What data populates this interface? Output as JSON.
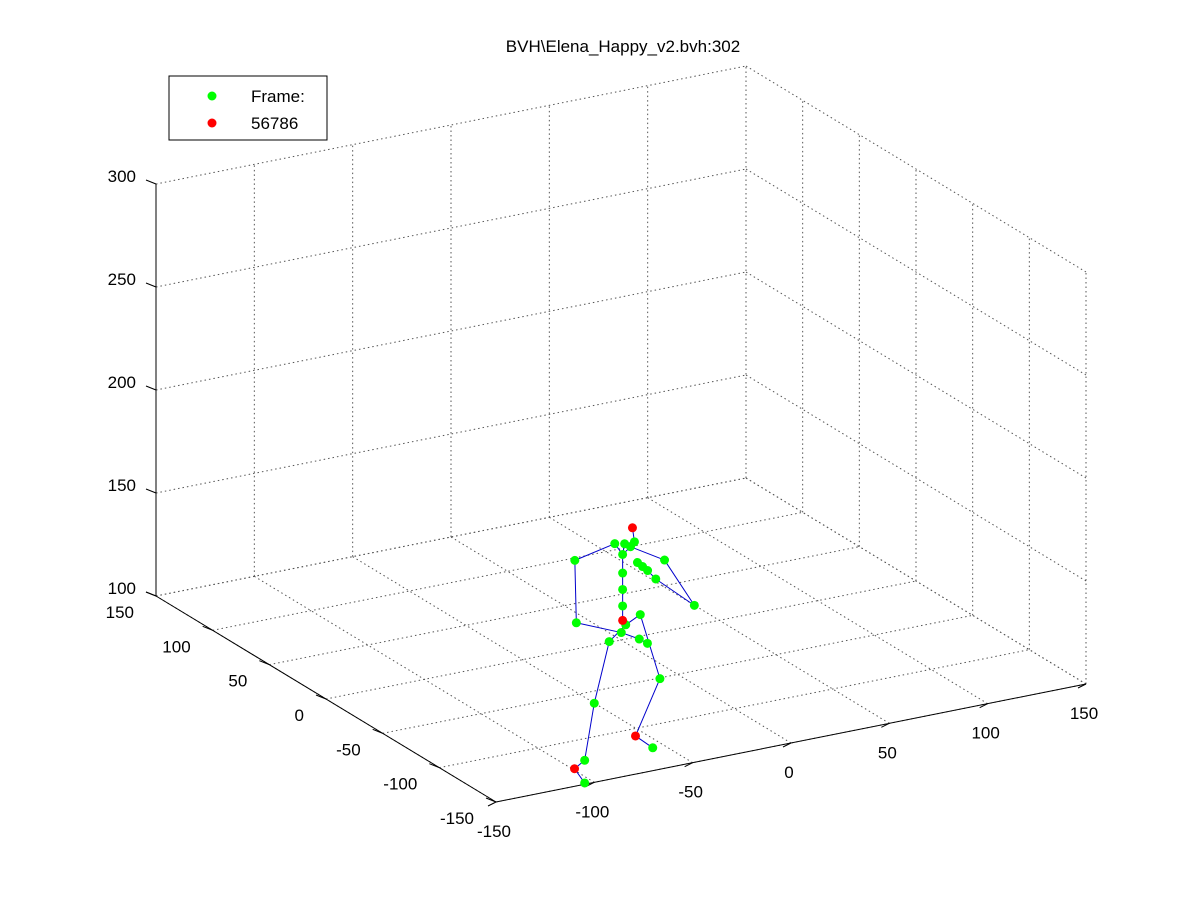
{
  "chart_data": {
    "type": "scatter",
    "title": "BVH\\Elena_Happy_v2.bvh:302",
    "projection": "3d",
    "grid": true,
    "legend_position": "top-left",
    "legend": [
      {
        "label": "Frame:",
        "color": "#00ff00"
      },
      {
        "label": "56786",
        "color": "#ff0000"
      }
    ],
    "axes": {
      "x": {
        "range": [
          -150,
          150
        ],
        "ticks": [
          "-150",
          "-100",
          "-50",
          "0",
          "50",
          "100",
          "150"
        ]
      },
      "y": {
        "range": [
          -150,
          150
        ],
        "ticks": [
          "-150",
          "-100",
          "-50",
          "0",
          "50",
          "100",
          "150"
        ]
      },
      "z": {
        "range": [
          100,
          300
        ],
        "ticks": [
          "100",
          "150",
          "200",
          "250",
          "300"
        ]
      }
    },
    "colors": {
      "joint": "#00ff00",
      "end_site": "#ff0000",
      "bone": "#0000cc",
      "grid": "#555555"
    },
    "joints": [
      {
        "id": "hips",
        "x": -12,
        "y": -25,
        "z": 118,
        "kind": "joint"
      },
      {
        "id": "lhip",
        "x": -25,
        "y": -33,
        "z": 115,
        "kind": "joint"
      },
      {
        "id": "lknee",
        "x": -28,
        "y": -25,
        "z": 83,
        "kind": "joint"
      },
      {
        "id": "lankle",
        "x": -30,
        "y": -20,
        "z": 54,
        "kind": "joint"
      },
      {
        "id": "ltoe",
        "x": -34,
        "y": -18,
        "z": 50,
        "kind": "end"
      },
      {
        "id": "lend",
        "x": -30,
        "y": -20,
        "z": 43,
        "kind": "joint"
      },
      {
        "id": "rhip",
        "x": 0,
        "y": -17,
        "z": 118,
        "kind": "joint"
      },
      {
        "id": "rknee",
        "x": 10,
        "y": -17,
        "z": 85,
        "kind": "joint"
      },
      {
        "id": "rankle",
        "x": -3,
        "y": -18,
        "z": 60,
        "kind": "end"
      },
      {
        "id": "rtoe",
        "x": 0,
        "y": -28,
        "z": 57,
        "kind": "joint"
      },
      {
        "id": "spine1",
        "x": -13,
        "y": -24,
        "z": 120,
        "kind": "end"
      },
      {
        "id": "spine2",
        "x": -13,
        "y": -24,
        "z": 127,
        "kind": "joint"
      },
      {
        "id": "spine3",
        "x": -13,
        "y": -24,
        "z": 135,
        "kind": "joint"
      },
      {
        "id": "spine4",
        "x": -13,
        "y": -24,
        "z": 143,
        "kind": "joint"
      },
      {
        "id": "neck",
        "x": -13,
        "y": -24,
        "z": 152,
        "kind": "joint"
      },
      {
        "id": "neck2",
        "x": -12,
        "y": -24,
        "z": 157,
        "kind": "joint"
      },
      {
        "id": "head",
        "x": -7,
        "y": -24,
        "z": 157,
        "kind": "joint"
      },
      {
        "id": "headtop",
        "x": -8,
        "y": -24,
        "z": 164,
        "kind": "end"
      },
      {
        "id": "lclav",
        "x": -17,
        "y": -24,
        "z": 158,
        "kind": "joint"
      },
      {
        "id": "lshoulder",
        "x": -35,
        "y": -20,
        "z": 152,
        "kind": "joint"
      },
      {
        "id": "lelbow",
        "x": -40,
        "y": -30,
        "z": 126,
        "kind": "joint"
      },
      {
        "id": "lwrist",
        "x": -16,
        "y": -28,
        "z": 116,
        "kind": "joint"
      },
      {
        "id": "lhand",
        "x": -8,
        "y": -30,
        "z": 112,
        "kind": "joint"
      },
      {
        "id": "lhand2",
        "x": -5,
        "y": -32,
        "z": 110,
        "kind": "joint"
      },
      {
        "id": "rclav",
        "x": -9,
        "y": -24,
        "z": 155,
        "kind": "joint"
      },
      {
        "id": "rshoulder",
        "x": 6,
        "y": -28,
        "z": 147,
        "kind": "joint"
      },
      {
        "id": "relbow",
        "x": 20,
        "y": -30,
        "z": 123,
        "kind": "joint"
      },
      {
        "id": "rwrist",
        "x": 5,
        "y": -22,
        "z": 136,
        "kind": "joint"
      },
      {
        "id": "rhand",
        "x": 2,
        "y": -20,
        "z": 140,
        "kind": "joint"
      },
      {
        "id": "rhand2",
        "x": 0,
        "y": -19,
        "z": 142,
        "kind": "joint"
      },
      {
        "id": "rhand3",
        "x": -2,
        "y": -18,
        "z": 144,
        "kind": "joint"
      }
    ],
    "bones": [
      [
        "hips",
        "lhip"
      ],
      [
        "lhip",
        "lknee"
      ],
      [
        "lknee",
        "lankle"
      ],
      [
        "lankle",
        "ltoe"
      ],
      [
        "ltoe",
        "lend"
      ],
      [
        "hips",
        "rhip"
      ],
      [
        "rhip",
        "rknee"
      ],
      [
        "rknee",
        "rankle"
      ],
      [
        "rankle",
        "rtoe"
      ],
      [
        "hips",
        "spine1"
      ],
      [
        "spine1",
        "spine2"
      ],
      [
        "spine2",
        "spine3"
      ],
      [
        "spine3",
        "spine4"
      ],
      [
        "spine4",
        "neck"
      ],
      [
        "neck",
        "neck2"
      ],
      [
        "neck2",
        "head"
      ],
      [
        "head",
        "headtop"
      ],
      [
        "neck",
        "lclav"
      ],
      [
        "lclav",
        "lshoulder"
      ],
      [
        "lshoulder",
        "lelbow"
      ],
      [
        "lelbow",
        "lwrist"
      ],
      [
        "lwrist",
        "lhand"
      ],
      [
        "lhand",
        "lhand2"
      ],
      [
        "neck",
        "rclav"
      ],
      [
        "rclav",
        "rshoulder"
      ],
      [
        "rshoulder",
        "relbow"
      ],
      [
        "relbow",
        "rwrist"
      ],
      [
        "rwrist",
        "rhand"
      ],
      [
        "rhand",
        "rhand2"
      ],
      [
        "rhand2",
        "rhand3"
      ]
    ]
  }
}
